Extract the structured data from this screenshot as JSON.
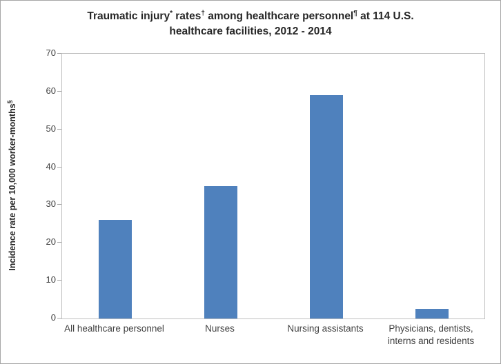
{
  "chart_data": {
    "type": "bar",
    "title_text": "Traumatic injury* rates† among healthcare personnel¶ at 114 U.S. healthcare facilities, 2012 - 2014",
    "title_lines": [
      [
        {
          "t": "Traumatic injury"
        },
        {
          "t": "*",
          "sup": true
        },
        {
          "t": " rates"
        },
        {
          "t": "†",
          "sup": true
        },
        {
          "t": " among healthcare personnel"
        },
        {
          "t": "¶",
          "sup": true
        },
        {
          "t": " at 114 U.S."
        }
      ],
      [
        {
          "t": "healthcare facilities, 2012 - 2014"
        }
      ]
    ],
    "ylabel_text": "Incidence rate per 10,000 worker-months§",
    "ylabel_segments": [
      {
        "t": "Incidence rate per 10,000 worker-months"
      },
      {
        "t": "§",
        "sup": true
      }
    ],
    "categories": [
      "All healthcare personnel",
      "Nurses",
      "Nursing assistants",
      "Physicians, dentists, interns and residents"
    ],
    "values": [
      26,
      35,
      59,
      2.5
    ],
    "ylim": [
      0,
      70
    ],
    "yticks": [
      0,
      10,
      20,
      30,
      40,
      50,
      60,
      70
    ],
    "bar_color": "#4f81bd",
    "grid": false,
    "legend": false
  }
}
